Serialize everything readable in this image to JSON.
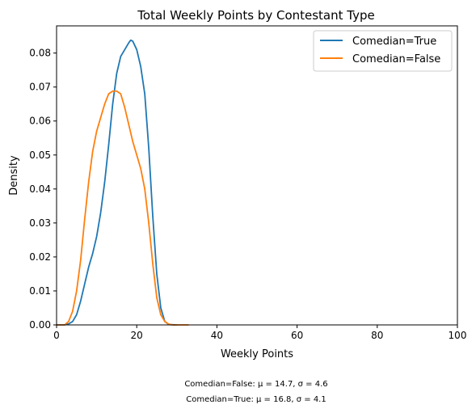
{
  "chart_data": {
    "type": "line",
    "title": "Total Weekly Points by Contestant Type",
    "xlabel": "Weekly Points",
    "ylabel": "Density",
    "xlim": [
      0,
      100
    ],
    "ylim": [
      0,
      0.088
    ],
    "x_ticks": [
      0,
      20,
      40,
      60,
      80,
      100
    ],
    "x_tick_labels": [
      "0",
      "20",
      "40",
      "60",
      "80",
      "100"
    ],
    "y_ticks": [
      0,
      0.01,
      0.02,
      0.03,
      0.04,
      0.05,
      0.06,
      0.07,
      0.08
    ],
    "y_tick_labels": [
      "0.00",
      "0.01",
      "0.02",
      "0.03",
      "0.04",
      "0.05",
      "0.06",
      "0.07",
      "0.08"
    ],
    "grid": false,
    "legend_position": "top-right",
    "series": [
      {
        "name": "Comedian=True",
        "color": "#1f77b4",
        "points": [
          [
            0,
            0
          ],
          [
            2,
            0
          ],
          [
            3,
            0.0003
          ],
          [
            4,
            0.001
          ],
          [
            5,
            0.003
          ],
          [
            6,
            0.007
          ],
          [
            7,
            0.012
          ],
          [
            8,
            0.017
          ],
          [
            9,
            0.021
          ],
          [
            10,
            0.026
          ],
          [
            11,
            0.033
          ],
          [
            12,
            0.042
          ],
          [
            13,
            0.053
          ],
          [
            14,
            0.065
          ],
          [
            15,
            0.074
          ],
          [
            16,
            0.079
          ],
          [
            17,
            0.081
          ],
          [
            18,
            0.083
          ],
          [
            18.5,
            0.0838
          ],
          [
            19,
            0.0835
          ],
          [
            20,
            0.081
          ],
          [
            21,
            0.076
          ],
          [
            22,
            0.068
          ],
          [
            23,
            0.052
          ],
          [
            24,
            0.032
          ],
          [
            25,
            0.015
          ],
          [
            26,
            0.005
          ],
          [
            27,
            0.001
          ],
          [
            28,
            0.0001
          ],
          [
            30,
            0
          ]
        ]
      },
      {
        "name": "Comedian=False",
        "color": "#ff7f0e",
        "points": [
          [
            0,
            0
          ],
          [
            2,
            0
          ],
          [
            3,
            0.001
          ],
          [
            4,
            0.004
          ],
          [
            5,
            0.01
          ],
          [
            6,
            0.019
          ],
          [
            7,
            0.031
          ],
          [
            8,
            0.042
          ],
          [
            9,
            0.051
          ],
          [
            10,
            0.057
          ],
          [
            11,
            0.061
          ],
          [
            12,
            0.065
          ],
          [
            13,
            0.068
          ],
          [
            14,
            0.0688
          ],
          [
            15,
            0.0688
          ],
          [
            16,
            0.068
          ],
          [
            17,
            0.064
          ],
          [
            18,
            0.059
          ],
          [
            19,
            0.054
          ],
          [
            20,
            0.05
          ],
          [
            21,
            0.046
          ],
          [
            22,
            0.04
          ],
          [
            23,
            0.03
          ],
          [
            24,
            0.018
          ],
          [
            25,
            0.008
          ],
          [
            26,
            0.003
          ],
          [
            27,
            0.001
          ],
          [
            28,
            0.0002
          ],
          [
            29,
            0
          ],
          [
            33,
            0
          ]
        ]
      }
    ],
    "annotations": [
      "Comedian=False: μ = 14.7, σ = 4.6",
      "Comedian=True: μ = 16.8, σ = 4.1"
    ]
  }
}
